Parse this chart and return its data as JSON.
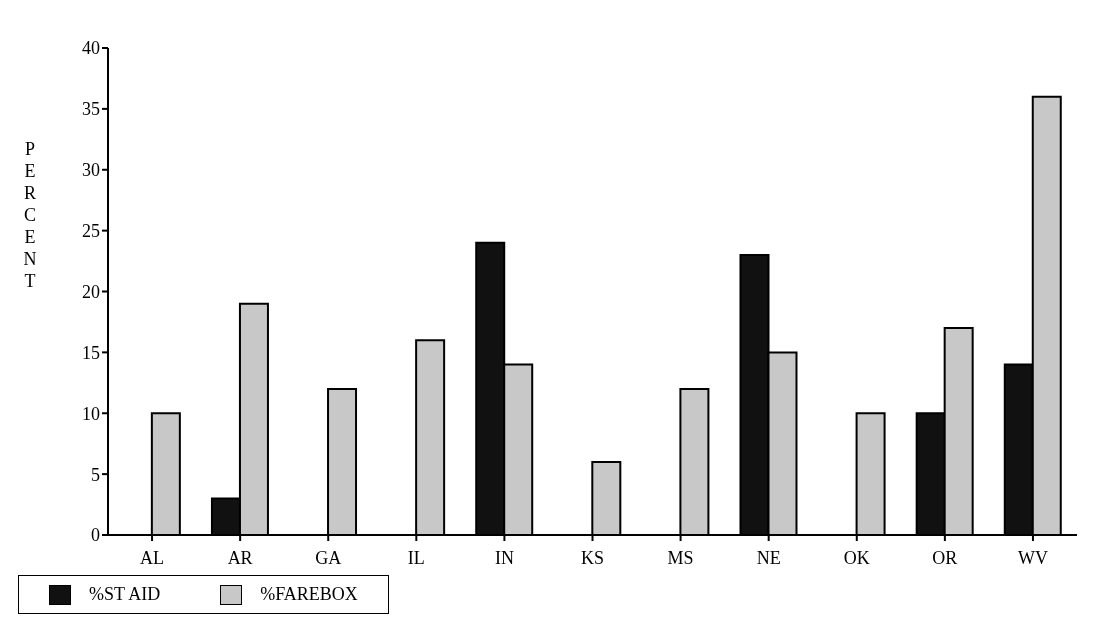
{
  "chart_data": {
    "type": "bar",
    "categories": [
      "AL",
      "AR",
      "GA",
      "IL",
      "IN",
      "KS",
      "MS",
      "NE",
      "OK",
      "OR",
      "WV"
    ],
    "series": [
      {
        "name": "%ST AID",
        "color": "#111111",
        "values": [
          0,
          3,
          0,
          0,
          24,
          0,
          0,
          23,
          0,
          10,
          14
        ]
      },
      {
        "name": "%FAREBOX",
        "color": "#c8c8c8",
        "values": [
          10,
          19,
          12,
          16,
          14,
          6,
          12,
          15,
          10,
          17,
          36
        ]
      }
    ],
    "ylabel": "PERCENT",
    "ylim": [
      0,
      40
    ],
    "yticks": [
      0,
      5,
      10,
      15,
      20,
      25,
      30,
      35,
      40
    ],
    "grid": false,
    "legend": "bottom"
  }
}
